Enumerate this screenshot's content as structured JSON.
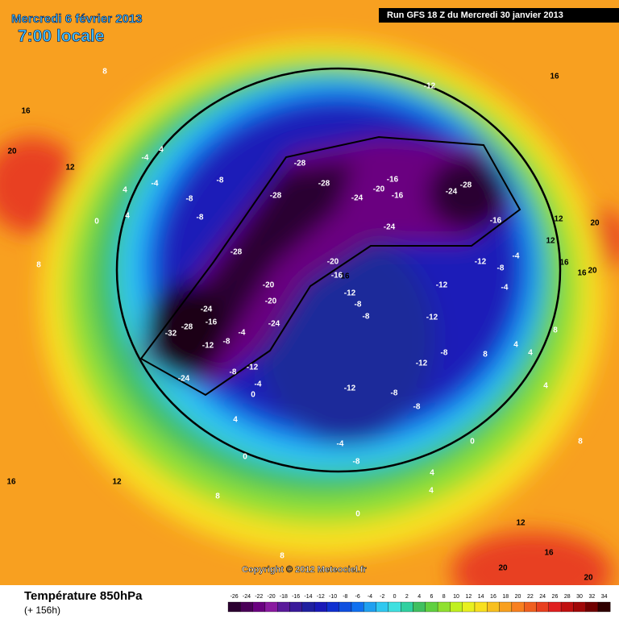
{
  "header": {
    "date": "Mercredi 6 février 2013",
    "time": "7:00 locale",
    "run": "Run GFS 18 Z du Mercredi 30 janvier 2013"
  },
  "copyright": "Copyright © 2012 Meteociel.fr",
  "footer": {
    "title": "Température 850hPa",
    "lead": "(+ 156h)"
  },
  "legend": {
    "ticks": [
      -26,
      -24,
      -22,
      -20,
      -18,
      -16,
      -14,
      -12,
      -10,
      -8,
      -6,
      -4,
      -2,
      0,
      2,
      4,
      6,
      8,
      10,
      12,
      14,
      16,
      18,
      20,
      22,
      24,
      26,
      28,
      30,
      32,
      34
    ],
    "colors": [
      "#2b0030",
      "#4a0058",
      "#6a0080",
      "#8a1aa0",
      "#5a1a9a",
      "#3a1a9a",
      "#2020a0",
      "#1a1ab8",
      "#1030d0",
      "#1050e0",
      "#1070f0",
      "#20a0f0",
      "#30c8f0",
      "#40e0e0",
      "#30d0a0",
      "#40c060",
      "#60d040",
      "#90e030",
      "#c0f020",
      "#e8f020",
      "#f8e020",
      "#f8c020",
      "#f8a020",
      "#f88020",
      "#f06020",
      "#e84020",
      "#e02020",
      "#c01010",
      "#a00808",
      "#700000",
      "#300000"
    ]
  },
  "contour_labels": [
    -12,
    16,
    8,
    16,
    20,
    12,
    -28,
    -28,
    -28,
    -24,
    -20,
    -16,
    -16,
    -24,
    -28,
    -16,
    -24,
    4,
    -4,
    4,
    -4,
    -8,
    -8,
    -8,
    0,
    4,
    12,
    20,
    12,
    16,
    20,
    16,
    -28,
    -20,
    -16,
    16,
    -12,
    -8,
    -4,
    -12,
    -4,
    -20,
    -20,
    -24,
    -24,
    -12,
    -8,
    -8,
    -12,
    -32,
    -28,
    -16,
    -12,
    -8,
    -4,
    -12,
    -8,
    -24,
    8,
    4,
    4,
    8,
    -8,
    -12,
    -12,
    -8,
    -8,
    0,
    -4,
    4,
    0,
    -4,
    -8,
    12,
    16,
    8,
    4,
    4,
    0,
    4,
    8,
    12,
    16,
    20,
    20,
    8,
    0,
    8
  ]
}
